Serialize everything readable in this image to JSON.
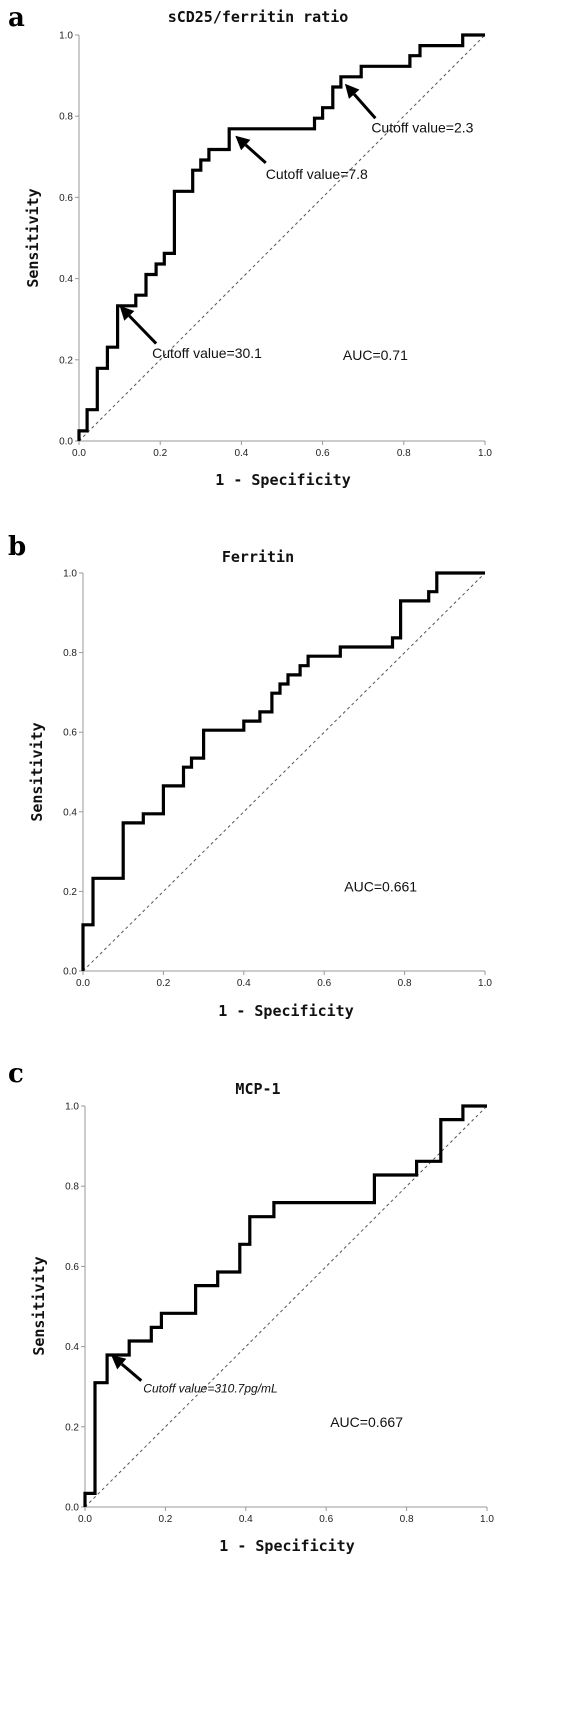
{
  "chart_data": [
    {
      "panel": "a",
      "type": "line",
      "title": "sCD25/ferritin ratio",
      "xlabel": "1 - Specificity",
      "ylabel": "Sensitivity",
      "xlim": [
        0,
        1
      ],
      "ylim": [
        0,
        1
      ],
      "xticks": [
        "0.0",
        "0.2",
        "0.4",
        "0.6",
        "0.8",
        "1.0"
      ],
      "yticks": [
        "0.0",
        "0.2",
        "0.4",
        "0.6",
        "0.8",
        "1.0"
      ],
      "auc_label": "AUC=0.71",
      "reference_line": "diagonal",
      "points": [
        [
          0,
          0
        ],
        [
          0,
          0.025
        ],
        [
          0.02,
          0.025
        ],
        [
          0.02,
          0.077
        ],
        [
          0.045,
          0.077
        ],
        [
          0.045,
          0.179
        ],
        [
          0.07,
          0.179
        ],
        [
          0.07,
          0.231
        ],
        [
          0.095,
          0.231
        ],
        [
          0.095,
          0.333
        ],
        [
          0.14,
          0.333
        ],
        [
          0.14,
          0.359
        ],
        [
          0.165,
          0.359
        ],
        [
          0.165,
          0.41
        ],
        [
          0.19,
          0.41
        ],
        [
          0.19,
          0.436
        ],
        [
          0.21,
          0.436
        ],
        [
          0.21,
          0.462
        ],
        [
          0.235,
          0.462
        ],
        [
          0.235,
          0.615
        ],
        [
          0.28,
          0.615
        ],
        [
          0.28,
          0.667
        ],
        [
          0.3,
          0.667
        ],
        [
          0.3,
          0.692
        ],
        [
          0.32,
          0.692
        ],
        [
          0.32,
          0.718
        ],
        [
          0.37,
          0.718
        ],
        [
          0.37,
          0.769
        ],
        [
          0.58,
          0.769
        ],
        [
          0.58,
          0.795
        ],
        [
          0.6,
          0.795
        ],
        [
          0.6,
          0.821
        ],
        [
          0.625,
          0.821
        ],
        [
          0.625,
          0.872
        ],
        [
          0.645,
          0.872
        ],
        [
          0.645,
          0.897
        ],
        [
          0.695,
          0.897
        ],
        [
          0.695,
          0.923
        ],
        [
          0.815,
          0.923
        ],
        [
          0.815,
          0.949
        ],
        [
          0.84,
          0.949
        ],
        [
          0.84,
          0.974
        ],
        [
          0.945,
          0.974
        ],
        [
          0.945,
          1.0
        ],
        [
          1.0,
          1.0
        ]
      ],
      "annotations": [
        {
          "text": "Cutoff value=30.1",
          "point": [
            0.1,
            0.333
          ],
          "text_at": [
            0.18,
            0.205
          ],
          "arrow_from": [
            0.19,
            0.24
          ],
          "anchor": "start"
        },
        {
          "text": "Cutoff value=7.8",
          "point": [
            0.385,
            0.752
          ],
          "text_at": [
            0.46,
            0.645
          ],
          "arrow_from": [
            0.46,
            0.685
          ],
          "anchor": "start"
        },
        {
          "text": "Cutoff value=2.3",
          "point": [
            0.655,
            0.88
          ],
          "text_at": [
            0.72,
            0.76
          ],
          "arrow_from": [
            0.73,
            0.795
          ],
          "anchor": "start"
        }
      ]
    },
    {
      "panel": "b",
      "type": "line",
      "title": "Ferritin",
      "xlabel": "1 - Specificity",
      "ylabel": "Sensitivity",
      "xlim": [
        0,
        1
      ],
      "ylim": [
        0,
        1
      ],
      "xticks": [
        "0.0",
        "0.2",
        "0.4",
        "0.6",
        "0.8",
        "1.0"
      ],
      "yticks": [
        "0.0",
        "0.2",
        "0.4",
        "0.6",
        "0.8",
        "1.0"
      ],
      "auc_label": "AUC=0.661",
      "reference_line": "diagonal",
      "points": [
        [
          0,
          0
        ],
        [
          0,
          0.116
        ],
        [
          0.025,
          0.116
        ],
        [
          0.025,
          0.233
        ],
        [
          0.1,
          0.233
        ],
        [
          0.1,
          0.372
        ],
        [
          0.15,
          0.372
        ],
        [
          0.15,
          0.395
        ],
        [
          0.2,
          0.395
        ],
        [
          0.2,
          0.465
        ],
        [
          0.25,
          0.465
        ],
        [
          0.25,
          0.512
        ],
        [
          0.27,
          0.512
        ],
        [
          0.27,
          0.535
        ],
        [
          0.3,
          0.535
        ],
        [
          0.3,
          0.605
        ],
        [
          0.4,
          0.605
        ],
        [
          0.4,
          0.628
        ],
        [
          0.44,
          0.628
        ],
        [
          0.44,
          0.651
        ],
        [
          0.47,
          0.651
        ],
        [
          0.47,
          0.698
        ],
        [
          0.49,
          0.698
        ],
        [
          0.49,
          0.721
        ],
        [
          0.51,
          0.721
        ],
        [
          0.51,
          0.744
        ],
        [
          0.54,
          0.744
        ],
        [
          0.54,
          0.767
        ],
        [
          0.56,
          0.767
        ],
        [
          0.56,
          0.791
        ],
        [
          0.64,
          0.791
        ],
        [
          0.64,
          0.814
        ],
        [
          0.77,
          0.814
        ],
        [
          0.77,
          0.837
        ],
        [
          0.79,
          0.837
        ],
        [
          0.79,
          0.93
        ],
        [
          0.86,
          0.93
        ],
        [
          0.86,
          0.953
        ],
        [
          0.88,
          0.953
        ],
        [
          0.88,
          1.0
        ],
        [
          1.0,
          1.0
        ]
      ],
      "annotations": []
    },
    {
      "panel": "c",
      "type": "line",
      "title": "MCP-1",
      "xlabel": "1 - Specificity",
      "ylabel": "Sensitivity",
      "xlim": [
        0,
        1
      ],
      "ylim": [
        0,
        1
      ],
      "xticks": [
        "0.0",
        "0.2",
        "0.4",
        "0.6",
        "0.8",
        "1.0"
      ],
      "yticks": [
        "0.0",
        "0.2",
        "0.4",
        "0.6",
        "0.8",
        "1.0"
      ],
      "auc_label": "AUC=0.667",
      "reference_line": "diagonal",
      "points": [
        [
          0,
          0
        ],
        [
          0,
          0.034
        ],
        [
          0.025,
          0.034
        ],
        [
          0.025,
          0.31
        ],
        [
          0.055,
          0.31
        ],
        [
          0.055,
          0.379
        ],
        [
          0.11,
          0.379
        ],
        [
          0.11,
          0.414
        ],
        [
          0.165,
          0.414
        ],
        [
          0.165,
          0.448
        ],
        [
          0.19,
          0.448
        ],
        [
          0.19,
          0.483
        ],
        [
          0.275,
          0.483
        ],
        [
          0.275,
          0.552
        ],
        [
          0.33,
          0.552
        ],
        [
          0.33,
          0.586
        ],
        [
          0.385,
          0.586
        ],
        [
          0.385,
          0.655
        ],
        [
          0.41,
          0.655
        ],
        [
          0.41,
          0.724
        ],
        [
          0.47,
          0.724
        ],
        [
          0.47,
          0.759
        ],
        [
          0.72,
          0.759
        ],
        [
          0.72,
          0.828
        ],
        [
          0.825,
          0.828
        ],
        [
          0.825,
          0.862
        ],
        [
          0.885,
          0.862
        ],
        [
          0.885,
          0.966
        ],
        [
          0.94,
          0.966
        ],
        [
          0.94,
          1.0
        ],
        [
          1.0,
          1.0
        ]
      ],
      "annotations": [
        {
          "text": "Cutoff value=310.7pg/mL",
          "point": [
            0.065,
            0.379
          ],
          "text_at": [
            0.145,
            0.285
          ],
          "arrow_from": [
            0.14,
            0.315
          ],
          "anchor": "start",
          "italic": true
        }
      ]
    }
  ]
}
